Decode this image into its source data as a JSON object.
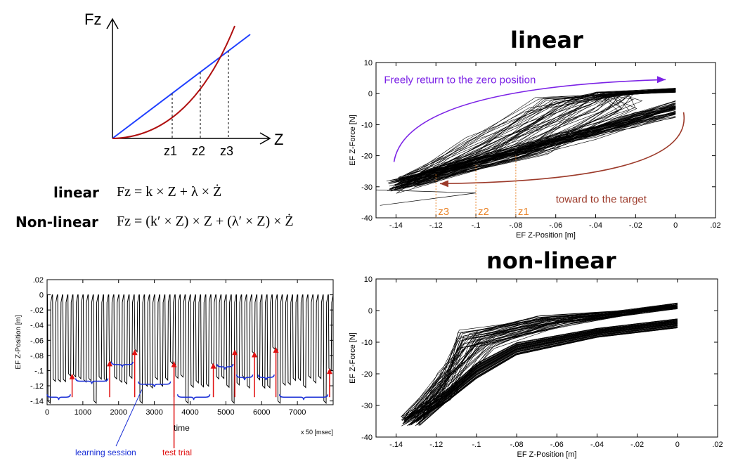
{
  "concept_diagram": {
    "y_label": "Fz",
    "x_label": "Z",
    "markers": [
      "z1",
      "z2",
      "z3"
    ],
    "linear_line_color": "#1f3fff",
    "nonlinear_curve_color": "#b01010"
  },
  "equations": {
    "linear_label": "linear",
    "linear_formula": "Fz = k × Z + λ × Ż",
    "nonlinear_label": "Non-linear",
    "nonlinear_formula": "Fz = (k′ × Z) × Z + (λ′ × Z) × Ż"
  },
  "chart_data": [
    {
      "id": "linear",
      "type": "line",
      "title": "linear",
      "xlabel": "EF Z-Position [m]",
      "ylabel": "EF Z-Force [N]",
      "xlim": [
        -0.15,
        0.02
      ],
      "ylim": [
        -40,
        10
      ],
      "xticks": [
        -0.14,
        -0.12,
        -0.1,
        -0.08,
        -0.06,
        -0.04,
        -0.02,
        0,
        0.02
      ],
      "yticks": [
        -40,
        -30,
        -20,
        -10,
        0,
        10
      ],
      "series_color": "#000000",
      "return_path": {
        "x": [
          -0.14,
          -0.1,
          -0.06,
          -0.02,
          0
        ],
        "y": [
          -33,
          -20,
          -3,
          0,
          0.5
        ]
      },
      "target_path": {
        "x": [
          0,
          -0.04,
          -0.08,
          -0.12,
          -0.14
        ],
        "y": [
          -5,
          -11,
          -19,
          -29,
          -34
        ]
      },
      "annotations": {
        "return_text": "Freely return to the zero position",
        "return_color": "#7b22e6",
        "target_text": "toward to the target",
        "target_color": "#9c3a2a",
        "markers": [
          {
            "label": "z3",
            "x": -0.12
          },
          {
            "label": "z2",
            "x": -0.1
          },
          {
            "label": "z1",
            "x": -0.08
          }
        ],
        "marker_color": "#e8842a"
      }
    },
    {
      "id": "nonlinear",
      "type": "line",
      "title": "non-linear",
      "xlabel": "EF Z-Position [m]",
      "ylabel": "EF Z-Force [N]",
      "xlim": [
        -0.15,
        0.02
      ],
      "ylim": [
        -40,
        10
      ],
      "xticks": [
        -0.14,
        -0.12,
        -0.1,
        -0.08,
        -0.06,
        -0.04,
        -0.02,
        0,
        0.02
      ],
      "yticks": [
        -40,
        -30,
        -20,
        -10,
        0,
        10
      ],
      "series_color": "#000000",
      "return_path": {
        "x": [
          -0.135,
          -0.12,
          -0.1,
          -0.06,
          -0.02,
          0
        ],
        "y": [
          -36,
          -12,
          -5,
          -3,
          -1,
          0
        ]
      },
      "target_path": {
        "x": [
          0,
          -0.04,
          -0.08,
          -0.1,
          -0.12,
          -0.135
        ],
        "y": [
          -4,
          -7,
          -13,
          -20,
          -31,
          -36
        ]
      }
    },
    {
      "id": "timeseries",
      "type": "line",
      "xlabel": "time",
      "ylabel": "EF Z-Position [m]",
      "x_unit": "x 50 [msec]",
      "xlim": [
        0,
        8000
      ],
      "ylim": [
        -0.145,
        0.02
      ],
      "xticks": [
        0,
        1000,
        2000,
        3000,
        4000,
        5000,
        6000,
        7000
      ],
      "yticks": [
        -0.14,
        -0.12,
        -0.1,
        -0.08,
        -0.06,
        -0.04,
        -0.02,
        0,
        0.02
      ],
      "series_color": "#000000",
      "n_trials": 56,
      "test_trials": [
        {
          "x": 700,
          "y": -0.104
        },
        {
          "x": 1750,
          "y": -0.087
        },
        {
          "x": 2450,
          "y": -0.072
        },
        {
          "x": 3550,
          "y": -0.088
        },
        {
          "x": 4650,
          "y": -0.09
        },
        {
          "x": 5250,
          "y": -0.072
        },
        {
          "x": 5800,
          "y": -0.075
        },
        {
          "x": 6400,
          "y": -0.069
        },
        {
          "x": 7900,
          "y": -0.097
        }
      ],
      "learning_sessions": [
        {
          "x0": 0,
          "x1": 650,
          "y": -0.135
        },
        {
          "x0": 800,
          "x1": 1700,
          "y": -0.114
        },
        {
          "x0": 1800,
          "x1": 2400,
          "y": -0.092
        },
        {
          "x0": 2550,
          "x1": 3450,
          "y": -0.118
        },
        {
          "x0": 3650,
          "x1": 4550,
          "y": -0.135
        },
        {
          "x0": 4750,
          "x1": 5200,
          "y": -0.095
        },
        {
          "x0": 5300,
          "x1": 5750,
          "y": -0.109
        },
        {
          "x0": 5900,
          "x1": 6350,
          "y": -0.109
        },
        {
          "x0": 6500,
          "x1": 7850,
          "y": -0.135
        }
      ],
      "annotations": {
        "learning_text": "learning session",
        "learning_color": "#1a2fd6",
        "test_text": "test trial",
        "test_color": "#e01010"
      }
    }
  ]
}
